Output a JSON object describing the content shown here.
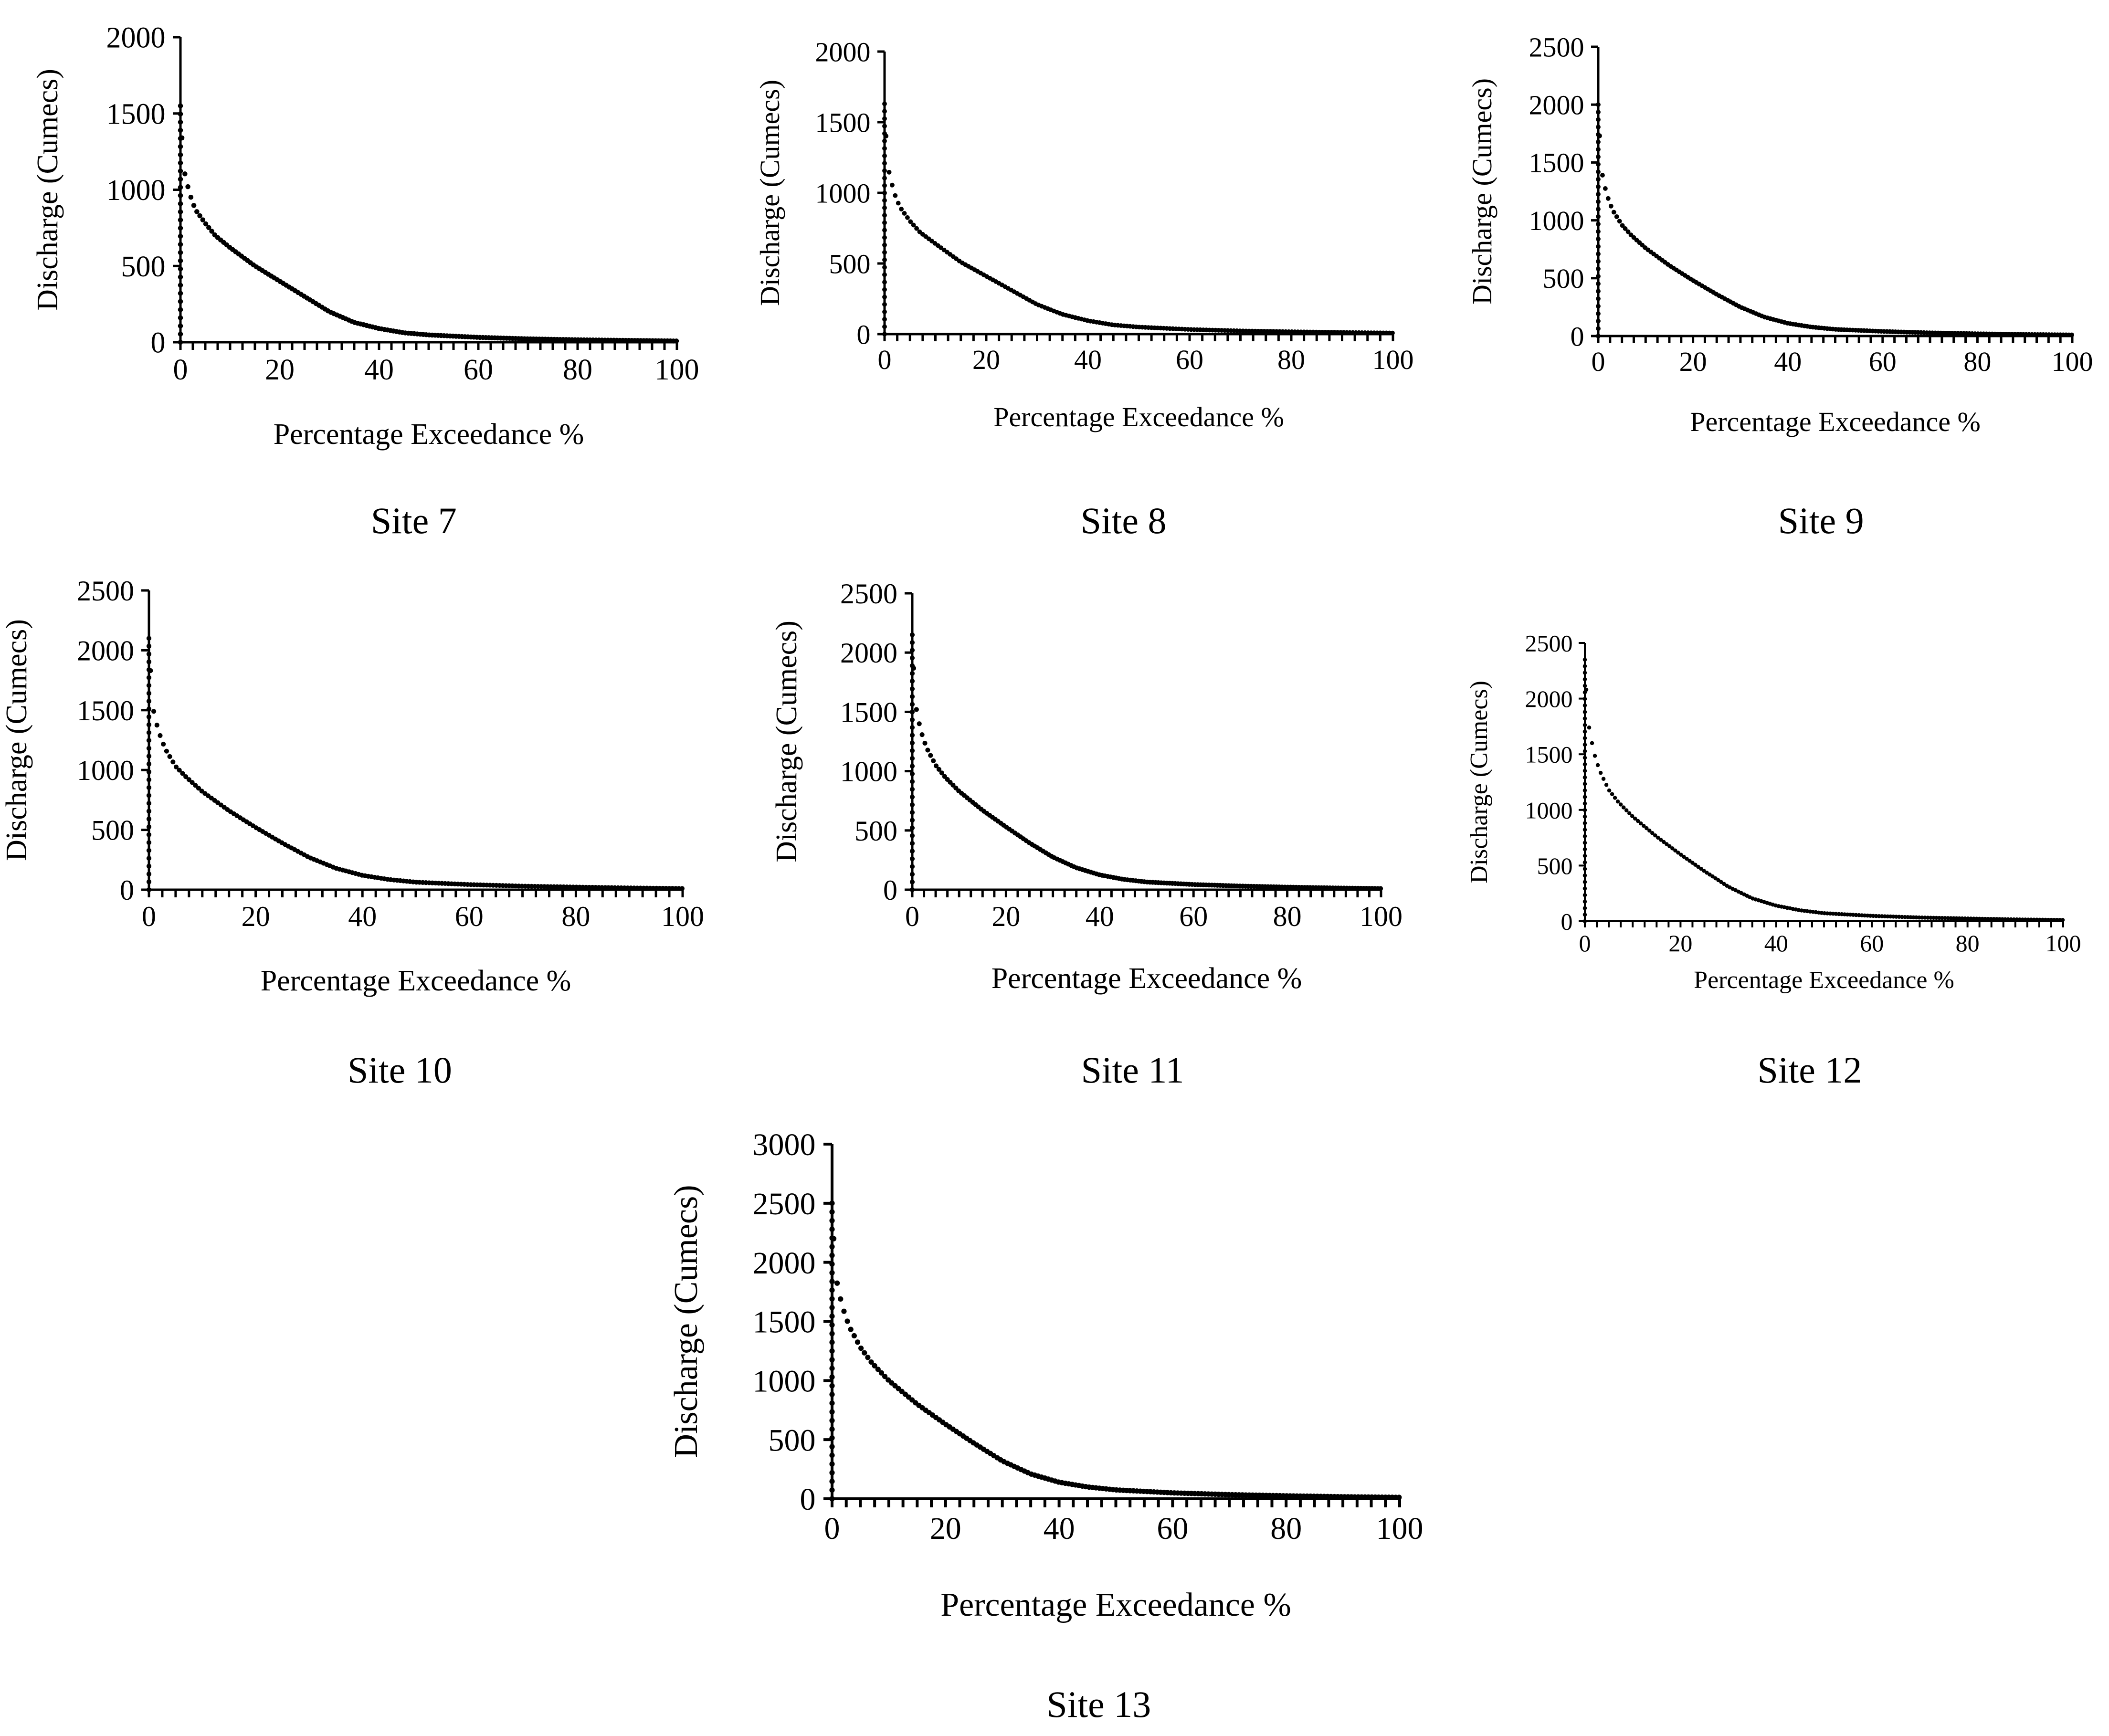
{
  "figure": {
    "panel_count": 7
  },
  "chart_data": [
    {
      "type": "line",
      "caption": "Site 7",
      "xlabel": "Percentage Exceedance %",
      "ylabel": "Discharge (Cumecs)",
      "xlim": [
        0,
        100
      ],
      "ylim": [
        0,
        2000
      ],
      "xticks": [
        0,
        20,
        40,
        60,
        80,
        100
      ],
      "yticks": [
        0,
        500,
        1000,
        1500,
        2000
      ],
      "series": [
        {
          "name": "Site 7",
          "style": "dotted",
          "x": [
            0,
            0,
            0.5,
            1,
            2,
            3,
            5,
            7,
            10,
            15,
            20,
            25,
            30,
            35,
            40,
            45,
            50,
            60,
            70,
            80,
            90,
            100
          ],
          "y": [
            0,
            1550,
            1200,
            1080,
            960,
            870,
            780,
            700,
            620,
            500,
            400,
            300,
            200,
            130,
            90,
            62,
            48,
            32,
            22,
            16,
            12,
            8
          ]
        }
      ]
    },
    {
      "type": "line",
      "caption": "Site 8",
      "xlabel": "Percentage Exceedance %",
      "ylabel": "Discharge (Cumecs)",
      "xlim": [
        0,
        100
      ],
      "ylim": [
        0,
        2000
      ],
      "xticks": [
        0,
        20,
        40,
        60,
        80,
        100
      ],
      "yticks": [
        0,
        500,
        1000,
        1500,
        2000
      ],
      "series": [
        {
          "name": "Site 8",
          "style": "dotted",
          "x": [
            0,
            0,
            0.5,
            1,
            2,
            3,
            5,
            7,
            10,
            15,
            20,
            25,
            30,
            35,
            40,
            45,
            50,
            60,
            70,
            80,
            90,
            100
          ],
          "y": [
            0,
            1630,
            1250,
            1120,
            990,
            900,
            800,
            720,
            640,
            510,
            410,
            310,
            210,
            140,
            95,
            65,
            50,
            33,
            23,
            17,
            12,
            8
          ]
        }
      ]
    },
    {
      "type": "line",
      "caption": "Site 9",
      "xlabel": "Percentage Exceedance %",
      "ylabel": "Discharge (Cumecs)",
      "xlim": [
        0,
        100
      ],
      "ylim": [
        0,
        2500
      ],
      "xticks": [
        0,
        20,
        40,
        60,
        80,
        100
      ],
      "yticks": [
        0,
        500,
        1000,
        1500,
        2000,
        2500
      ],
      "series": [
        {
          "name": "Site 9",
          "style": "dotted",
          "x": [
            0,
            0,
            0.5,
            1,
            2,
            3,
            5,
            7,
            10,
            15,
            20,
            25,
            30,
            35,
            40,
            45,
            50,
            60,
            70,
            80,
            90,
            100
          ],
          "y": [
            0,
            2000,
            1550,
            1350,
            1200,
            1090,
            960,
            870,
            760,
            610,
            480,
            360,
            250,
            165,
            110,
            78,
            58,
            40,
            28,
            20,
            14,
            10
          ]
        }
      ]
    },
    {
      "type": "line",
      "caption": "Site 10",
      "xlabel": "Percentage Exceedance %",
      "ylabel": "Discharge (Cumecs)",
      "xlim": [
        0,
        100
      ],
      "ylim": [
        0,
        2500
      ],
      "xticks": [
        0,
        20,
        40,
        60,
        80,
        100
      ],
      "yticks": [
        0,
        500,
        1000,
        1500,
        2000,
        2500
      ],
      "series": [
        {
          "name": "Site 10",
          "style": "dotted",
          "x": [
            0,
            0,
            0.5,
            1,
            2,
            3,
            5,
            7,
            10,
            15,
            20,
            25,
            30,
            35,
            40,
            45,
            50,
            60,
            70,
            80,
            90,
            100
          ],
          "y": [
            0,
            2100,
            1650,
            1450,
            1300,
            1180,
            1030,
            940,
            820,
            660,
            520,
            390,
            270,
            180,
            120,
            85,
            63,
            43,
            30,
            22,
            15,
            10
          ]
        }
      ]
    },
    {
      "type": "line",
      "caption": "Site 11",
      "xlabel": "Percentage Exceedance %",
      "ylabel": "Discharge (Cumecs)",
      "xlim": [
        0,
        100
      ],
      "ylim": [
        0,
        2500
      ],
      "xticks": [
        0,
        20,
        40,
        60,
        80,
        100
      ],
      "yticks": [
        0,
        500,
        1000,
        1500,
        2000,
        2500
      ],
      "series": [
        {
          "name": "Site 11",
          "style": "dotted",
          "x": [
            0,
            0,
            0.5,
            1,
            2,
            3,
            5,
            7,
            10,
            15,
            20,
            25,
            30,
            35,
            40,
            45,
            50,
            60,
            70,
            80,
            90,
            100
          ],
          "y": [
            0,
            2150,
            1680,
            1480,
            1320,
            1200,
            1050,
            950,
            830,
            670,
            530,
            395,
            275,
            185,
            125,
            88,
            65,
            44,
            31,
            22,
            15,
            10
          ]
        }
      ]
    },
    {
      "type": "line",
      "caption": "Site 12",
      "xlabel": "Percentage Exceedance %",
      "ylabel": "Discharge (Cumecs)",
      "xlim": [
        0,
        100
      ],
      "ylim": [
        0,
        2500
      ],
      "xticks": [
        0,
        20,
        40,
        60,
        80,
        100
      ],
      "yticks": [
        0,
        500,
        1000,
        1500,
        2000,
        2500
      ],
      "series": [
        {
          "name": "Site 12",
          "style": "dotted",
          "x": [
            0,
            0,
            0.5,
            1,
            2,
            3,
            5,
            7,
            10,
            15,
            20,
            25,
            30,
            35,
            40,
            45,
            50,
            60,
            70,
            80,
            90,
            100
          ],
          "y": [
            0,
            2350,
            1900,
            1700,
            1500,
            1360,
            1180,
            1070,
            940,
            760,
            600,
            450,
            310,
            205,
            140,
            98,
            72,
            48,
            33,
            24,
            16,
            11
          ]
        }
      ]
    },
    {
      "type": "line",
      "caption": "Site 13",
      "xlabel": "Percentage Exceedance %",
      "ylabel": "Discharge (Cumecs)",
      "xlim": [
        0,
        100
      ],
      "ylim": [
        0,
        3000
      ],
      "xticks": [
        0,
        20,
        40,
        60,
        80,
        100
      ],
      "yticks": [
        0,
        500,
        1000,
        1500,
        2000,
        2500,
        3000
      ],
      "series": [
        {
          "name": "Site 13",
          "style": "dotted",
          "x": [
            0,
            0,
            0.5,
            1,
            2,
            3,
            5,
            7,
            10,
            15,
            20,
            25,
            30,
            35,
            40,
            45,
            50,
            60,
            70,
            80,
            90,
            100
          ],
          "y": [
            0,
            2500,
            2000,
            1780,
            1600,
            1460,
            1280,
            1150,
            1000,
            800,
            630,
            470,
            320,
            210,
            140,
            100,
            75,
            50,
            35,
            25,
            17,
            12
          ]
        }
      ]
    }
  ]
}
